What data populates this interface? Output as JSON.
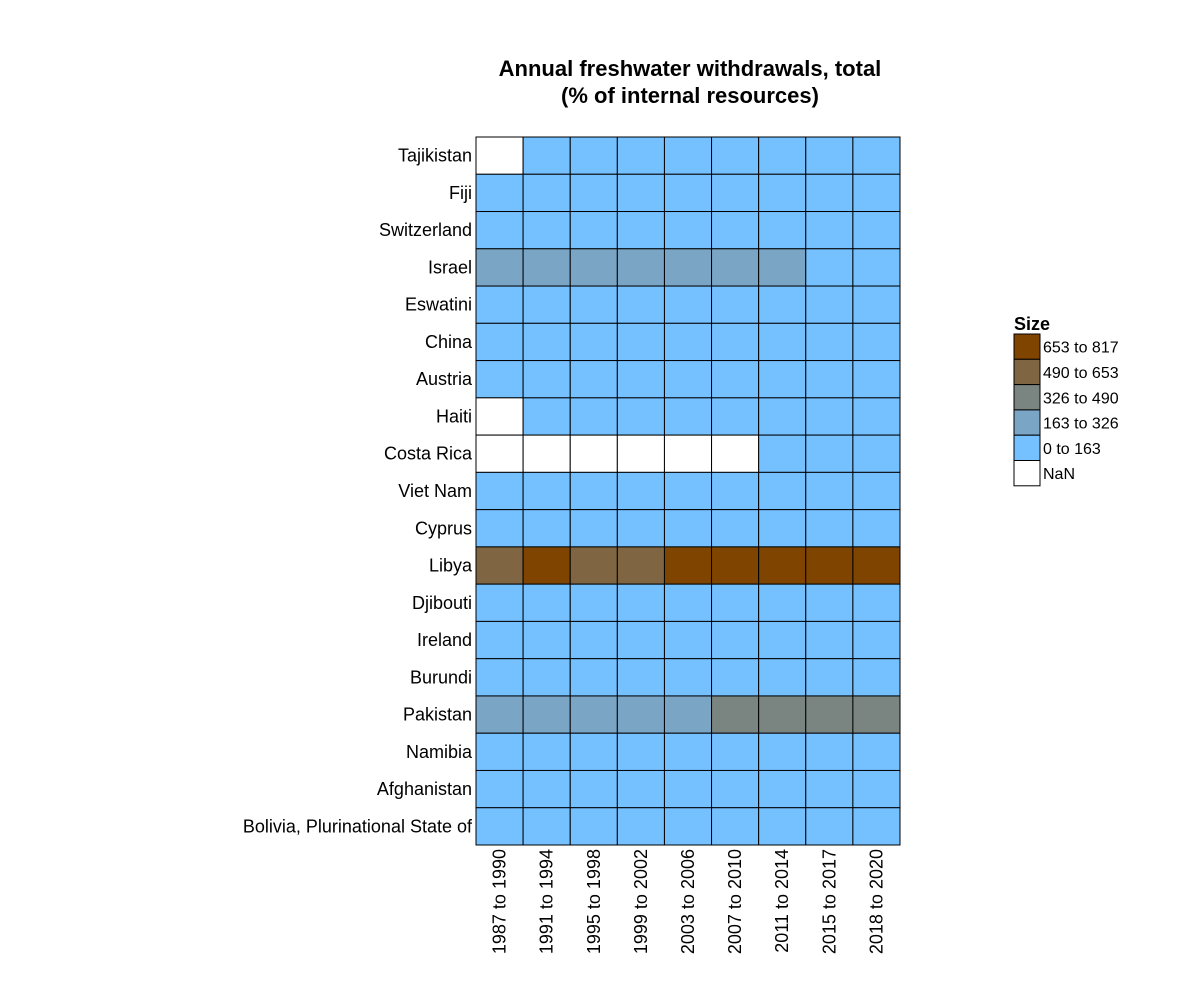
{
  "chart_data": {
    "type": "heatmap",
    "title": [
      "Annual freshwater withdrawals, total",
      "(% of internal resources)"
    ],
    "rows": [
      "Tajikistan",
      "Fiji",
      "Switzerland",
      "Israel",
      "Eswatini",
      "China",
      "Austria",
      "Haiti",
      "Costa Rica",
      "Viet Nam",
      "Cyprus",
      "Libya",
      "Djibouti",
      "Ireland",
      "Burundi",
      "Pakistan",
      "Namibia",
      "Afghanistan",
      "Bolivia, Plurinational State of"
    ],
    "columns": [
      "1987 to 1990",
      "1991 to 1994",
      "1995 to 1998",
      "1999 to 2002",
      "2003 to 2006",
      "2007 to 2010",
      "2011 to 2014",
      "2015 to 2017",
      "2018 to 2020"
    ],
    "bins": [
      [
        null,
        0,
        0,
        0,
        0,
        0,
        0,
        0,
        0
      ],
      [
        0,
        0,
        0,
        0,
        0,
        0,
        0,
        0,
        0
      ],
      [
        0,
        0,
        0,
        0,
        0,
        0,
        0,
        0,
        0
      ],
      [
        1,
        1,
        1,
        1,
        1,
        1,
        1,
        0,
        0
      ],
      [
        0,
        0,
        0,
        0,
        0,
        0,
        0,
        0,
        0
      ],
      [
        0,
        0,
        0,
        0,
        0,
        0,
        0,
        0,
        0
      ],
      [
        0,
        0,
        0,
        0,
        0,
        0,
        0,
        0,
        0
      ],
      [
        null,
        0,
        0,
        0,
        0,
        0,
        0,
        0,
        0
      ],
      [
        null,
        null,
        null,
        null,
        null,
        null,
        0,
        0,
        0
      ],
      [
        0,
        0,
        0,
        0,
        0,
        0,
        0,
        0,
        0
      ],
      [
        0,
        0,
        0,
        0,
        0,
        0,
        0,
        0,
        0
      ],
      [
        3,
        4,
        3,
        3,
        4,
        4,
        4,
        4,
        4
      ],
      [
        0,
        0,
        0,
        0,
        0,
        0,
        0,
        0,
        0
      ],
      [
        0,
        0,
        0,
        0,
        0,
        0,
        0,
        0,
        0
      ],
      [
        0,
        0,
        0,
        0,
        0,
        0,
        0,
        0,
        0
      ],
      [
        1,
        1,
        1,
        1,
        1,
        2,
        2,
        2,
        2
      ],
      [
        0,
        0,
        0,
        0,
        0,
        0,
        0,
        0,
        0
      ],
      [
        0,
        0,
        0,
        0,
        0,
        0,
        0,
        0,
        0
      ],
      [
        0,
        0,
        0,
        0,
        0,
        0,
        0,
        0,
        0
      ]
    ],
    "legend": {
      "title": "Size",
      "placement": "right",
      "entries": [
        {
          "label": "653  to  817",
          "color": "#7f4500",
          "bin": 4
        },
        {
          "label": "490  to  653",
          "color": "#7f6541",
          "bin": 3
        },
        {
          "label": "326  to  490",
          "color": "#7a8581",
          "bin": 2
        },
        {
          "label": "163  to  326",
          "color": "#7aa5c5",
          "bin": 1
        },
        {
          "label": "0  to  163",
          "color": "#75c0ff",
          "bin": 0
        },
        {
          "label": "NaN",
          "color": "#ffffff",
          "bin": null
        }
      ]
    },
    "grid": true
  }
}
